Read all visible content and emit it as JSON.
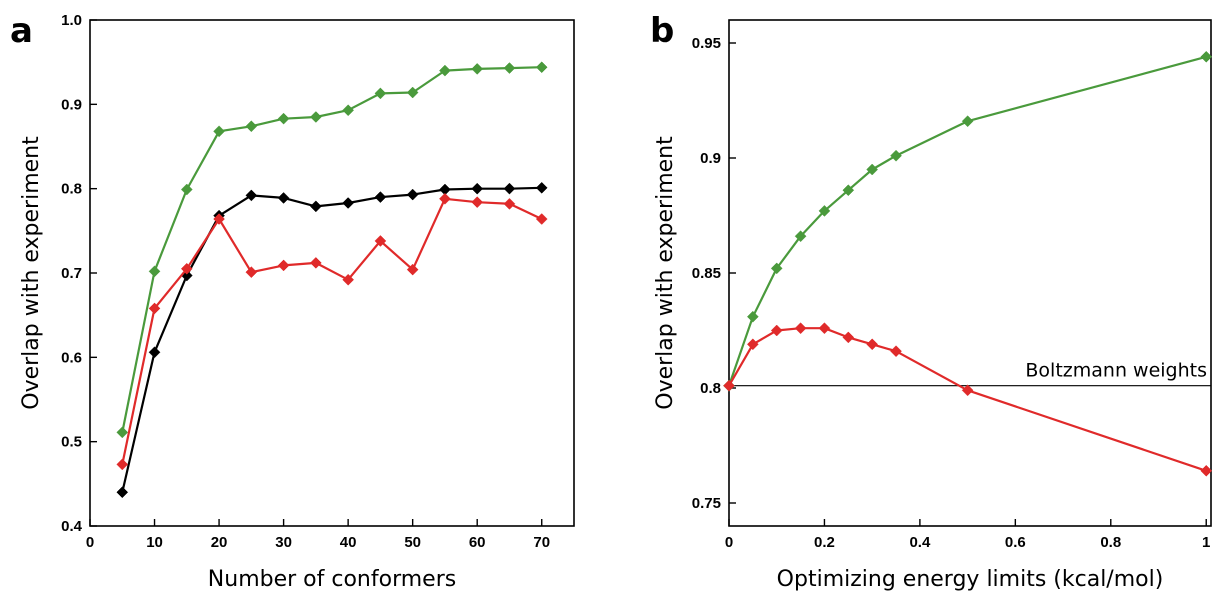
{
  "chart_data": [
    {
      "panel": "a",
      "type": "line",
      "xlabel": "Number of conformers",
      "ylabel": "Overlap with experiment",
      "xlim": [
        0,
        75
      ],
      "ylim": [
        0.4,
        1.0
      ],
      "xticks": [
        0,
        10,
        20,
        30,
        40,
        50,
        60,
        70
      ],
      "yticks": [
        0.4,
        0.5,
        0.6,
        0.7,
        0.8,
        0.9,
        1.0
      ],
      "ytick_labels": [
        "0.4",
        "0.5",
        "0.6",
        "0.7",
        "0.8",
        "0.9",
        "1.0"
      ],
      "x": [
        5,
        10,
        15,
        20,
        25,
        30,
        35,
        40,
        45,
        50,
        55,
        60,
        65,
        70
      ],
      "series": [
        {
          "color": "#4a9a3c",
          "values": [
            0.511,
            0.702,
            0.799,
            0.868,
            0.874,
            0.883,
            0.885,
            0.893,
            0.913,
            0.914,
            0.94,
            0.942,
            0.943,
            0.944
          ]
        },
        {
          "color": "#000000",
          "values": [
            0.44,
            0.606,
            0.697,
            0.768,
            0.792,
            0.789,
            0.779,
            0.783,
            0.79,
            0.793,
            0.799,
            0.8,
            0.8,
            0.801
          ]
        },
        {
          "color": "#e02a2a",
          "values": [
            0.473,
            0.658,
            0.705,
            0.764,
            0.701,
            0.709,
            0.712,
            0.692,
            0.738,
            0.704,
            0.788,
            0.784,
            0.782,
            0.764
          ]
        }
      ]
    },
    {
      "panel": "b",
      "type": "line",
      "xlabel": "Optimizing energy limits (kcal/mol)",
      "ylabel": "Overlap with experiment",
      "xlim": [
        0,
        1.01
      ],
      "ylim": [
        0.74,
        0.96
      ],
      "xticks": [
        0,
        0.2,
        0.4,
        0.6,
        0.8,
        1
      ],
      "xtick_labels": [
        "0",
        "0.2",
        "0.4",
        "0.6",
        "0.8",
        "1"
      ],
      "yticks": [
        0.75,
        0.8,
        0.85,
        0.9,
        0.95
      ],
      "ytick_labels": [
        "0.75",
        "0.8",
        "0.85",
        "0.9",
        "0.95"
      ],
      "x": [
        0,
        0.05,
        0.1,
        0.15,
        0.2,
        0.25,
        0.3,
        0.35,
        0.5,
        1.0
      ],
      "series": [
        {
          "color": "#4a9a3c",
          "values": [
            0.801,
            0.831,
            0.852,
            0.866,
            0.877,
            0.886,
            0.895,
            0.901,
            0.916,
            0.944
          ]
        },
        {
          "color": "#e02a2a",
          "values": [
            0.801,
            0.819,
            0.825,
            0.826,
            0.826,
            0.822,
            0.819,
            0.816,
            0.799,
            0.764
          ]
        }
      ],
      "reference_line": {
        "y": 0.801,
        "label": "Boltzmann weights"
      }
    }
  ]
}
